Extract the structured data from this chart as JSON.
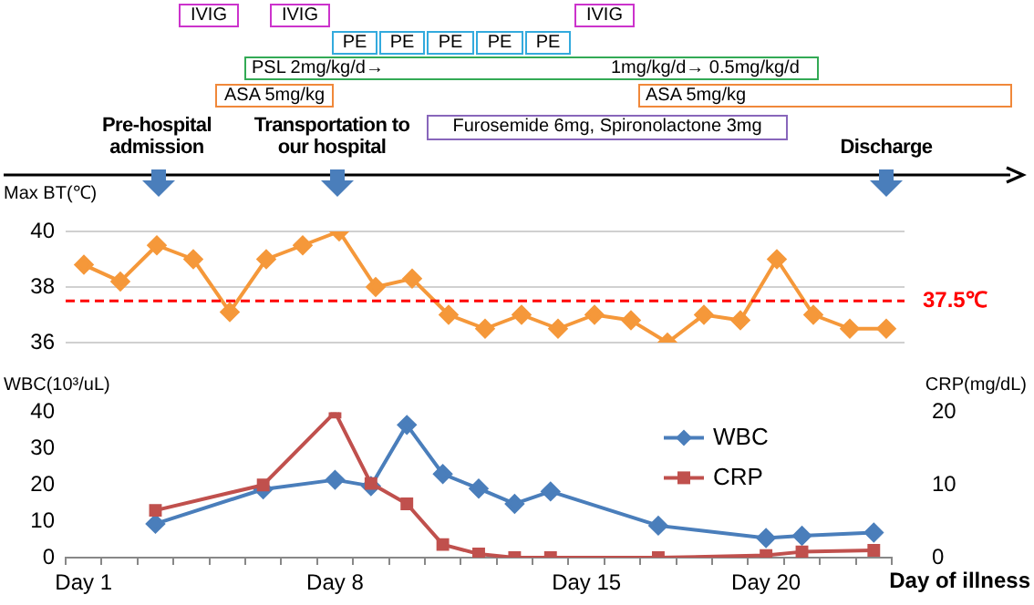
{
  "chart_data": [
    {
      "type": "line",
      "ylabel": "Max BT(℃)",
      "categories": [
        null,
        null,
        null,
        null,
        null,
        null,
        null,
        null,
        null,
        null,
        null,
        null,
        null,
        null,
        null,
        null,
        null,
        null,
        null,
        null,
        null,
        null,
        null
      ],
      "series": [
        {
          "color": "#f5983a",
          "marker": "diamond",
          "values": [
            38.8,
            38.2,
            39.5,
            39.0,
            37.1,
            39.0,
            39.5,
            40.0,
            38.0,
            38.3,
            37.0,
            36.5,
            37.0,
            36.5,
            37.0,
            36.8,
            36.0,
            37.0,
            36.8,
            39.0,
            37.0,
            36.5,
            36.5
          ]
        }
      ],
      "ylim": [
        36,
        40
      ],
      "yticks": [
        36,
        38,
        40
      ],
      "grid": "y",
      "tick_labels": "y",
      "ref_lines": [
        {
          "axis": "y",
          "value": 37.5,
          "label": "37.5℃",
          "color": "#ff0000",
          "line_style": "dashed"
        }
      ],
      "annotations": [
        "IVIG",
        "IVIG",
        "IVIG",
        "PE",
        "PE",
        "PE",
        "PE",
        "PE",
        "PSL 2mg/kg/d→",
        "1mg/kg/d→ 0.5mg/kg/d",
        "ASA 5mg/kg",
        "ASA 5mg/kg",
        "Furosemide 6mg, Spironolactone 3mg",
        "Pre-hospital admission",
        "Transportation to our hospital",
        "Discharge"
      ]
    },
    {
      "type": "line",
      "xlabel": "Day of illness",
      "ylabel": "WBC(10³/uL)",
      "y2label": "CRP(mg/dL)",
      "categories": [
        "Day 1",
        null,
        null,
        null,
        null,
        null,
        null,
        "Day 8",
        null,
        null,
        null,
        null,
        null,
        null,
        "Day 15",
        null,
        null,
        null,
        null,
        "Day 20",
        null,
        null,
        null
      ],
      "series": [
        {
          "name": "WBC",
          "color": "#4a7ebb",
          "marker": "diamond",
          "values": [
            null,
            null,
            9.3,
            null,
            null,
            18.8,
            null,
            21.4,
            19.7,
            36.5,
            23,
            19,
            14.8,
            18.2,
            null,
            null,
            8.8,
            null,
            null,
            5.4,
            6,
            null,
            6.9
          ]
        },
        {
          "name": "CRP",
          "color": "#c0504d",
          "marker": "square",
          "axis": "y2",
          "values": [
            null,
            null,
            6.5,
            null,
            null,
            10,
            null,
            20,
            10.2,
            7.4,
            1.8,
            0.5,
            0,
            0,
            null,
            null,
            0,
            null,
            null,
            0.3,
            0.8,
            null,
            1
          ]
        }
      ],
      "ylim": [
        0,
        40
      ],
      "yticks": [
        0,
        10,
        20,
        30,
        40
      ],
      "y2lim": [
        0,
        20
      ],
      "y2ticks": [
        0,
        10,
        20
      ],
      "legend": "top right"
    }
  ]
}
